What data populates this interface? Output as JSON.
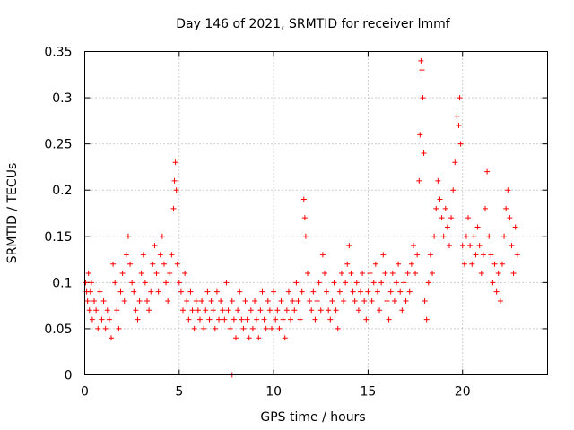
{
  "chart_data": {
    "type": "scatter",
    "title": "Day 146 of 2021, SRMTID for receiver lmmf",
    "xlabel": "GPS time / hours",
    "ylabel": "SRMTID / TECUs",
    "xlim": [
      0,
      24.5
    ],
    "ylim": [
      0,
      0.35
    ],
    "xticks": [
      0,
      5,
      10,
      15,
      20
    ],
    "xtick_labels": [
      "0",
      "5",
      "10",
      "15",
      "20"
    ],
    "yticks": [
      0,
      0.05,
      0.1,
      0.15,
      0.2,
      0.25,
      0.3,
      0.35
    ],
    "ytick_labels": [
      "0",
      "0.05",
      "0.1",
      "0.15",
      "0.2",
      "0.25",
      "0.3",
      "0.35"
    ],
    "grid": true,
    "marker": "plus",
    "color": "#ff0000",
    "series": [
      {
        "name": "SRMTID",
        "points": [
          [
            0.05,
            0.1
          ],
          [
            0.1,
            0.09
          ],
          [
            0.15,
            0.08
          ],
          [
            0.2,
            0.11
          ],
          [
            0.25,
            0.07
          ],
          [
            0.3,
            0.09
          ],
          [
            0.35,
            0.1
          ],
          [
            0.4,
            0.06
          ],
          [
            0.5,
            0.08
          ],
          [
            0.6,
            0.07
          ],
          [
            0.7,
            0.05
          ],
          [
            0.8,
            0.09
          ],
          [
            0.9,
            0.06
          ],
          [
            1.0,
            0.08
          ],
          [
            1.1,
            0.05
          ],
          [
            1.2,
            0.07
          ],
          [
            1.3,
            0.06
          ],
          [
            1.4,
            0.04
          ],
          [
            1.5,
            0.12
          ],
          [
            1.6,
            0.1
          ],
          [
            1.7,
            0.07
          ],
          [
            1.8,
            0.05
          ],
          [
            1.9,
            0.09
          ],
          [
            2.0,
            0.11
          ],
          [
            2.1,
            0.08
          ],
          [
            2.2,
            0.13
          ],
          [
            2.3,
            0.15
          ],
          [
            2.4,
            0.12
          ],
          [
            2.5,
            0.1
          ],
          [
            2.6,
            0.09
          ],
          [
            2.7,
            0.07
          ],
          [
            2.8,
            0.06
          ],
          [
            2.9,
            0.08
          ],
          [
            3.0,
            0.11
          ],
          [
            3.1,
            0.13
          ],
          [
            3.2,
            0.1
          ],
          [
            3.3,
            0.08
          ],
          [
            3.4,
            0.07
          ],
          [
            3.5,
            0.09
          ],
          [
            3.6,
            0.12
          ],
          [
            3.7,
            0.14
          ],
          [
            3.8,
            0.11
          ],
          [
            3.9,
            0.09
          ],
          [
            4.0,
            0.13
          ],
          [
            4.1,
            0.15
          ],
          [
            4.2,
            0.12
          ],
          [
            4.3,
            0.1
          ],
          [
            4.4,
            0.08
          ],
          [
            4.5,
            0.11
          ],
          [
            4.6,
            0.13
          ],
          [
            4.7,
            0.18
          ],
          [
            4.75,
            0.21
          ],
          [
            4.8,
            0.23
          ],
          [
            4.85,
            0.2
          ],
          [
            4.9,
            0.12
          ],
          [
            5.0,
            0.1
          ],
          [
            5.1,
            0.09
          ],
          [
            5.2,
            0.07
          ],
          [
            5.3,
            0.11
          ],
          [
            5.4,
            0.08
          ],
          [
            5.5,
            0.06
          ],
          [
            5.6,
            0.09
          ],
          [
            5.7,
            0.07
          ],
          [
            5.8,
            0.05
          ],
          [
            5.9,
            0.08
          ],
          [
            6.0,
            0.07
          ],
          [
            6.1,
            0.06
          ],
          [
            6.2,
            0.08
          ],
          [
            6.3,
            0.05
          ],
          [
            6.4,
            0.07
          ],
          [
            6.5,
            0.09
          ],
          [
            6.6,
            0.06
          ],
          [
            6.7,
            0.08
          ],
          [
            6.8,
            0.07
          ],
          [
            6.9,
            0.05
          ],
          [
            7.0,
            0.09
          ],
          [
            7.1,
            0.06
          ],
          [
            7.2,
            0.08
          ],
          [
            7.3,
            0.07
          ],
          [
            7.4,
            0.06
          ],
          [
            7.5,
            0.1
          ],
          [
            7.6,
            0.07
          ],
          [
            7.7,
            0.05
          ],
          [
            7.8,
            0.08
          ],
          [
            7.9,
            0.06
          ],
          [
            8.0,
            0.04
          ],
          [
            8.1,
            0.07
          ],
          [
            8.2,
            0.09
          ],
          [
            8.3,
            0.06
          ],
          [
            8.4,
            0.05
          ],
          [
            8.5,
            0.08
          ],
          [
            8.6,
            0.06
          ],
          [
            8.7,
            0.04
          ],
          [
            8.8,
            0.07
          ],
          [
            8.9,
            0.05
          ],
          [
            9.0,
            0.08
          ],
          [
            9.1,
            0.06
          ],
          [
            9.2,
            0.04
          ],
          [
            9.3,
            0.07
          ],
          [
            9.4,
            0.09
          ],
          [
            9.5,
            0.06
          ],
          [
            9.6,
            0.05
          ],
          [
            9.7,
            0.08
          ],
          [
            9.8,
            0.07
          ],
          [
            9.9,
            0.05
          ],
          [
            10.0,
            0.09
          ],
          [
            10.1,
            0.06
          ],
          [
            10.2,
            0.07
          ],
          [
            10.3,
            0.05
          ],
          [
            10.4,
            0.08
          ],
          [
            10.5,
            0.06
          ],
          [
            10.6,
            0.04
          ],
          [
            10.7,
            0.07
          ],
          [
            10.8,
            0.09
          ],
          [
            10.9,
            0.06
          ],
          [
            11.0,
            0.08
          ],
          [
            11.1,
            0.07
          ],
          [
            11.2,
            0.1
          ],
          [
            11.3,
            0.08
          ],
          [
            11.4,
            0.06
          ],
          [
            11.5,
            0.09
          ],
          [
            11.6,
            0.19
          ],
          [
            11.65,
            0.17
          ],
          [
            11.7,
            0.15
          ],
          [
            11.8,
            0.11
          ],
          [
            11.9,
            0.08
          ],
          [
            12.0,
            0.07
          ],
          [
            12.1,
            0.09
          ],
          [
            12.2,
            0.06
          ],
          [
            12.3,
            0.08
          ],
          [
            12.4,
            0.1
          ],
          [
            12.5,
            0.07
          ],
          [
            12.6,
            0.13
          ],
          [
            12.7,
            0.11
          ],
          [
            12.8,
            0.09
          ],
          [
            12.9,
            0.07
          ],
          [
            13.0,
            0.06
          ],
          [
            13.1,
            0.08
          ],
          [
            13.2,
            0.1
          ],
          [
            13.3,
            0.07
          ],
          [
            13.4,
            0.05
          ],
          [
            13.5,
            0.09
          ],
          [
            13.6,
            0.11
          ],
          [
            13.7,
            0.08
          ],
          [
            13.8,
            0.1
          ],
          [
            13.9,
            0.12
          ],
          [
            14.0,
            0.14
          ],
          [
            14.1,
            0.11
          ],
          [
            14.2,
            0.09
          ],
          [
            14.3,
            0.08
          ],
          [
            14.4,
            0.1
          ],
          [
            14.5,
            0.07
          ],
          [
            14.6,
            0.09
          ],
          [
            14.7,
            0.11
          ],
          [
            14.8,
            0.08
          ],
          [
            14.9,
            0.06
          ],
          [
            15.0,
            0.09
          ],
          [
            15.1,
            0.11
          ],
          [
            15.2,
            0.08
          ],
          [
            15.3,
            0.1
          ],
          [
            15.4,
            0.12
          ],
          [
            15.5,
            0.09
          ],
          [
            15.6,
            0.07
          ],
          [
            15.7,
            0.1
          ],
          [
            15.8,
            0.13
          ],
          [
            15.9,
            0.11
          ],
          [
            16.0,
            0.08
          ],
          [
            16.1,
            0.06
          ],
          [
            16.2,
            0.09
          ],
          [
            16.3,
            0.11
          ],
          [
            16.4,
            0.08
          ],
          [
            16.5,
            0.1
          ],
          [
            16.6,
            0.12
          ],
          [
            16.7,
            0.09
          ],
          [
            16.8,
            0.07
          ],
          [
            16.9,
            0.1
          ],
          [
            17.0,
            0.08
          ],
          [
            17.1,
            0.11
          ],
          [
            17.2,
            0.09
          ],
          [
            17.3,
            0.12
          ],
          [
            17.4,
            0.14
          ],
          [
            17.5,
            0.11
          ],
          [
            17.6,
            0.13
          ],
          [
            17.7,
            0.21
          ],
          [
            17.75,
            0.26
          ],
          [
            17.8,
            0.34
          ],
          [
            17.85,
            0.33
          ],
          [
            17.9,
            0.3
          ],
          [
            17.95,
            0.24
          ],
          [
            18.0,
            0.08
          ],
          [
            18.1,
            0.06
          ],
          [
            18.2,
            0.1
          ],
          [
            18.3,
            0.13
          ],
          [
            18.4,
            0.11
          ],
          [
            18.5,
            0.15
          ],
          [
            18.6,
            0.18
          ],
          [
            18.7,
            0.21
          ],
          [
            18.8,
            0.19
          ],
          [
            18.9,
            0.17
          ],
          [
            19.0,
            0.15
          ],
          [
            19.1,
            0.18
          ],
          [
            19.2,
            0.16
          ],
          [
            19.3,
            0.14
          ],
          [
            19.4,
            0.17
          ],
          [
            19.5,
            0.2
          ],
          [
            19.6,
            0.23
          ],
          [
            19.7,
            0.28
          ],
          [
            19.8,
            0.27
          ],
          [
            19.85,
            0.3
          ],
          [
            19.9,
            0.25
          ],
          [
            20.0,
            0.14
          ],
          [
            20.1,
            0.12
          ],
          [
            20.2,
            0.15
          ],
          [
            20.3,
            0.17
          ],
          [
            20.4,
            0.14
          ],
          [
            20.5,
            0.12
          ],
          [
            20.6,
            0.15
          ],
          [
            20.7,
            0.13
          ],
          [
            20.8,
            0.16
          ],
          [
            20.9,
            0.14
          ],
          [
            21.0,
            0.11
          ],
          [
            21.1,
            0.13
          ],
          [
            21.2,
            0.18
          ],
          [
            21.3,
            0.22
          ],
          [
            21.4,
            0.15
          ],
          [
            21.5,
            0.13
          ],
          [
            21.6,
            0.1
          ],
          [
            21.7,
            0.12
          ],
          [
            21.8,
            0.09
          ],
          [
            21.9,
            0.11
          ],
          [
            22.0,
            0.08
          ],
          [
            22.1,
            0.12
          ],
          [
            22.2,
            0.15
          ],
          [
            22.3,
            0.18
          ],
          [
            22.4,
            0.2
          ],
          [
            22.5,
            0.17
          ],
          [
            22.6,
            0.14
          ],
          [
            22.7,
            0.11
          ],
          [
            22.8,
            0.16
          ],
          [
            22.9,
            0.13
          ],
          [
            7.8,
            0.0
          ]
        ]
      }
    ]
  }
}
